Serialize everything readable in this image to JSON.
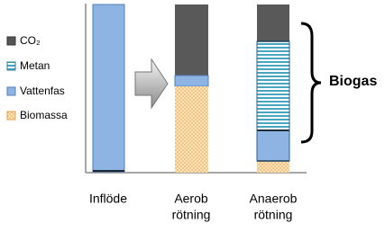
{
  "legend": [
    "CO₂",
    "Metan",
    "Vattenfas",
    "Biomassa"
  ],
  "columns": [
    {
      "label": [
        "Inflöde"
      ]
    },
    {
      "label": [
        "Aerob",
        "rötning"
      ]
    },
    {
      "label": [
        "Anaerob",
        "rötning"
      ]
    }
  ],
  "brace_label": "Biogas"
}
